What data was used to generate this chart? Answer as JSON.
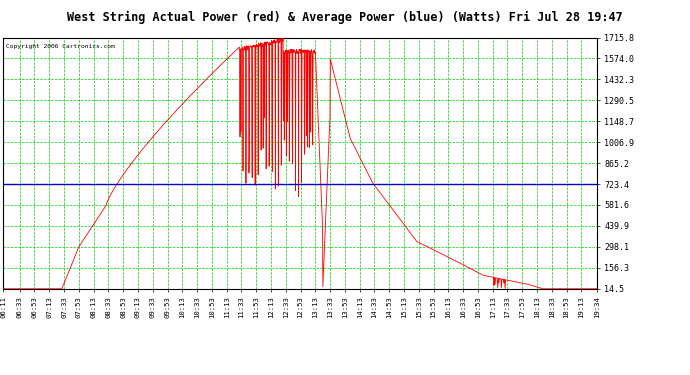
{
  "title": "West String Actual Power (red) & Average Power (blue) (Watts) Fri Jul 28 19:47",
  "copyright": "Copyright 2006 Cartronics.com",
  "yticks": [
    14.5,
    156.3,
    298.1,
    439.9,
    581.6,
    723.4,
    865.2,
    1006.9,
    1148.7,
    1290.5,
    1432.3,
    1574.0,
    1715.8
  ],
  "ymin": 14.5,
  "ymax": 1715.8,
  "avg_power": 723.4,
  "bg_color": "#ffffff",
  "plot_bg_color": "#ffffff",
  "grid_color": "#00cc00",
  "line_color_actual": "#ff0000",
  "line_color_avg": "#0000cc",
  "title_bg": "#c8c8c8",
  "xtick_labels": [
    "06:11",
    "06:33",
    "06:53",
    "07:13",
    "07:33",
    "07:53",
    "08:13",
    "08:33",
    "08:53",
    "09:13",
    "09:33",
    "09:53",
    "10:13",
    "10:33",
    "10:53",
    "11:13",
    "11:33",
    "11:53",
    "12:13",
    "12:33",
    "12:53",
    "13:13",
    "13:33",
    "13:53",
    "14:13",
    "14:33",
    "14:53",
    "15:13",
    "15:33",
    "15:53",
    "16:13",
    "16:33",
    "16:53",
    "17:13",
    "17:33",
    "17:53",
    "18:13",
    "18:33",
    "18:53",
    "19:13",
    "19:34"
  ]
}
